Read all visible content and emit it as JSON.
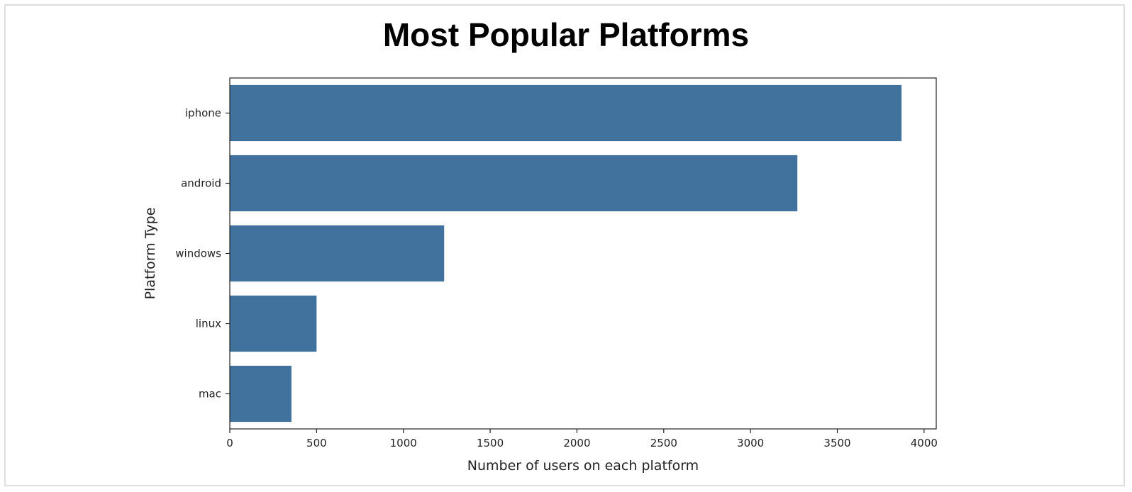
{
  "chart_data": {
    "type": "bar",
    "orientation": "horizontal",
    "title": "Most Popular Platforms",
    "xlabel": "Number of users on each platform",
    "ylabel": "Platform Type",
    "categories": [
      "iphone",
      "android",
      "windows",
      "linux",
      "mac"
    ],
    "values": [
      3870,
      3270,
      1235,
      500,
      355
    ],
    "xlim": [
      0,
      4070
    ],
    "xticks": [
      0,
      500,
      1000,
      1500,
      2000,
      2500,
      3000,
      3500,
      4000
    ],
    "grid": false,
    "legend": "none",
    "bar_color": "#41729d"
  }
}
